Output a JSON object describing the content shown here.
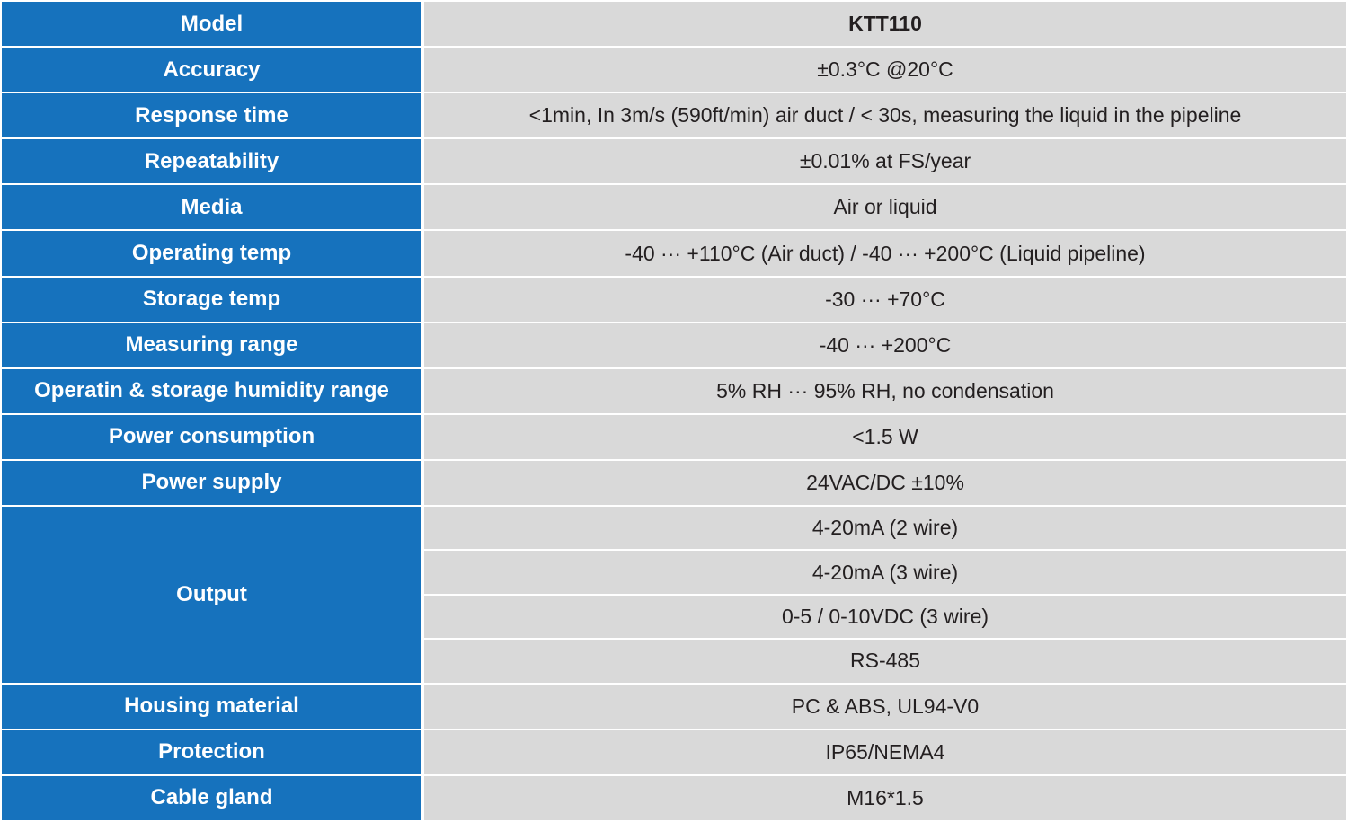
{
  "spec_table": {
    "header": {
      "label": "Model",
      "value": "KTT110"
    },
    "rows": [
      {
        "label": "Accuracy",
        "value": "±0.3°C @20°C"
      },
      {
        "label": "Response time",
        "value": "<1min, In 3m/s (590ft/min) air duct  /  < 30s, measuring the liquid in the pipeline"
      },
      {
        "label": "Repeatability",
        "value": "±0.01% at FS/year"
      },
      {
        "label": "Media",
        "value": "Air or liquid"
      },
      {
        "label": "Operating temp",
        "value": "-40 ··· +110°C (Air duct)  /  -40 ··· +200°C (Liquid pipeline)"
      },
      {
        "label": "Storage temp",
        "value": "-30 ··· +70°C"
      },
      {
        "label": "Measuring range",
        "value": "-40 ··· +200°C"
      },
      {
        "label": "Operatin & storage humidity range",
        "value": "5% RH ··· 95% RH, no condensation"
      },
      {
        "label": "Power consumption",
        "value": "<1.5 W"
      },
      {
        "label": "Power supply",
        "value": "24VAC/DC ±10%"
      }
    ],
    "output": {
      "label": "Output",
      "values": [
        "4-20mA (2 wire)",
        "4-20mA (3 wire)",
        "0-5 / 0-10VDC (3 wire)",
        "RS-485"
      ]
    },
    "rows_after": [
      {
        "label": "Housing material",
        "value": "PC & ABS, UL94-V0"
      },
      {
        "label": "Protection",
        "value": "IP65/NEMA4"
      },
      {
        "label": "Cable gland",
        "value": "M16*1.5"
      }
    ]
  },
  "colors": {
    "label_background": "#1672bd",
    "value_background": "#d9d9d9",
    "label_text": "#ffffff",
    "value_text": "#231f20"
  }
}
